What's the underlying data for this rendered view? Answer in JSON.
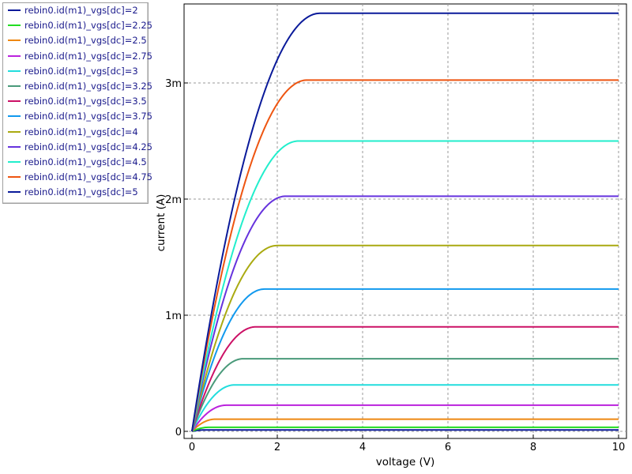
{
  "chart_data": {
    "type": "line",
    "title": "",
    "xlabel": "voltage (V)",
    "ylabel": "current (A)",
    "xlim": [
      0,
      10
    ],
    "ylim": [
      -0.0001,
      0.00365
    ],
    "x_ticks": [
      0,
      2,
      4,
      6,
      8,
      10
    ],
    "y_ticks": [
      0,
      0.001,
      0.002,
      0.003
    ],
    "x_tick_labels": [
      "0",
      "2",
      "4",
      "6",
      "8",
      "10"
    ],
    "y_tick_labels": [
      "0",
      "1m",
      "2m",
      "3m"
    ],
    "grid": true,
    "legend_position": "top-left, outside plot",
    "series": [
      {
        "name": "rebin0.id(m1)_vgs[dc]=2",
        "color": "#0a1a9a",
        "vov": 0.3,
        "isat": 1.2e-05
      },
      {
        "name": "rebin0.id(m1)_vgs[dc]=2.25",
        "color": "#22dd22",
        "vov": 0.4,
        "isat": 3.5e-05
      },
      {
        "name": "rebin0.id(m1)_vgs[dc]=2.5",
        "color": "#ee8811",
        "vov": 0.55,
        "isat": 0.000105
      },
      {
        "name": "rebin0.id(m1)_vgs[dc]=2.75",
        "color": "#bb22dd",
        "vov": 0.8,
        "isat": 0.000225
      },
      {
        "name": "rebin0.id(m1)_vgs[dc]=3",
        "color": "#22dddd",
        "vov": 1.0,
        "isat": 0.0004
      },
      {
        "name": "rebin0.id(m1)_vgs[dc]=3.25",
        "color": "#4a9a7a",
        "vov": 1.2,
        "isat": 0.000625
      },
      {
        "name": "rebin0.id(m1)_vgs[dc]=3.5",
        "color": "#cc1166",
        "vov": 1.5,
        "isat": 0.0009
      },
      {
        "name": "rebin0.id(m1)_vgs[dc]=3.75",
        "color": "#1199ee",
        "vov": 1.7,
        "isat": 0.001225
      },
      {
        "name": "rebin0.id(m1)_vgs[dc]=4",
        "color": "#aaaa11",
        "vov": 2.0,
        "isat": 0.0016
      },
      {
        "name": "rebin0.id(m1)_vgs[dc]=4.25",
        "color": "#6633dd",
        "vov": 2.2,
        "isat": 0.002025
      },
      {
        "name": "rebin0.id(m1)_vgs[dc]=4.5",
        "color": "#22eecc",
        "vov": 2.5,
        "isat": 0.0025
      },
      {
        "name": "rebin0.id(m1)_vgs[dc]=4.75",
        "color": "#ee5511",
        "vov": 2.7,
        "isat": 0.003025
      },
      {
        "name": "rebin0.id(m1)_vgs[dc]=5",
        "color": "#0a1a9a",
        "vov": 3.0,
        "isat": 0.0036
      }
    ]
  }
}
